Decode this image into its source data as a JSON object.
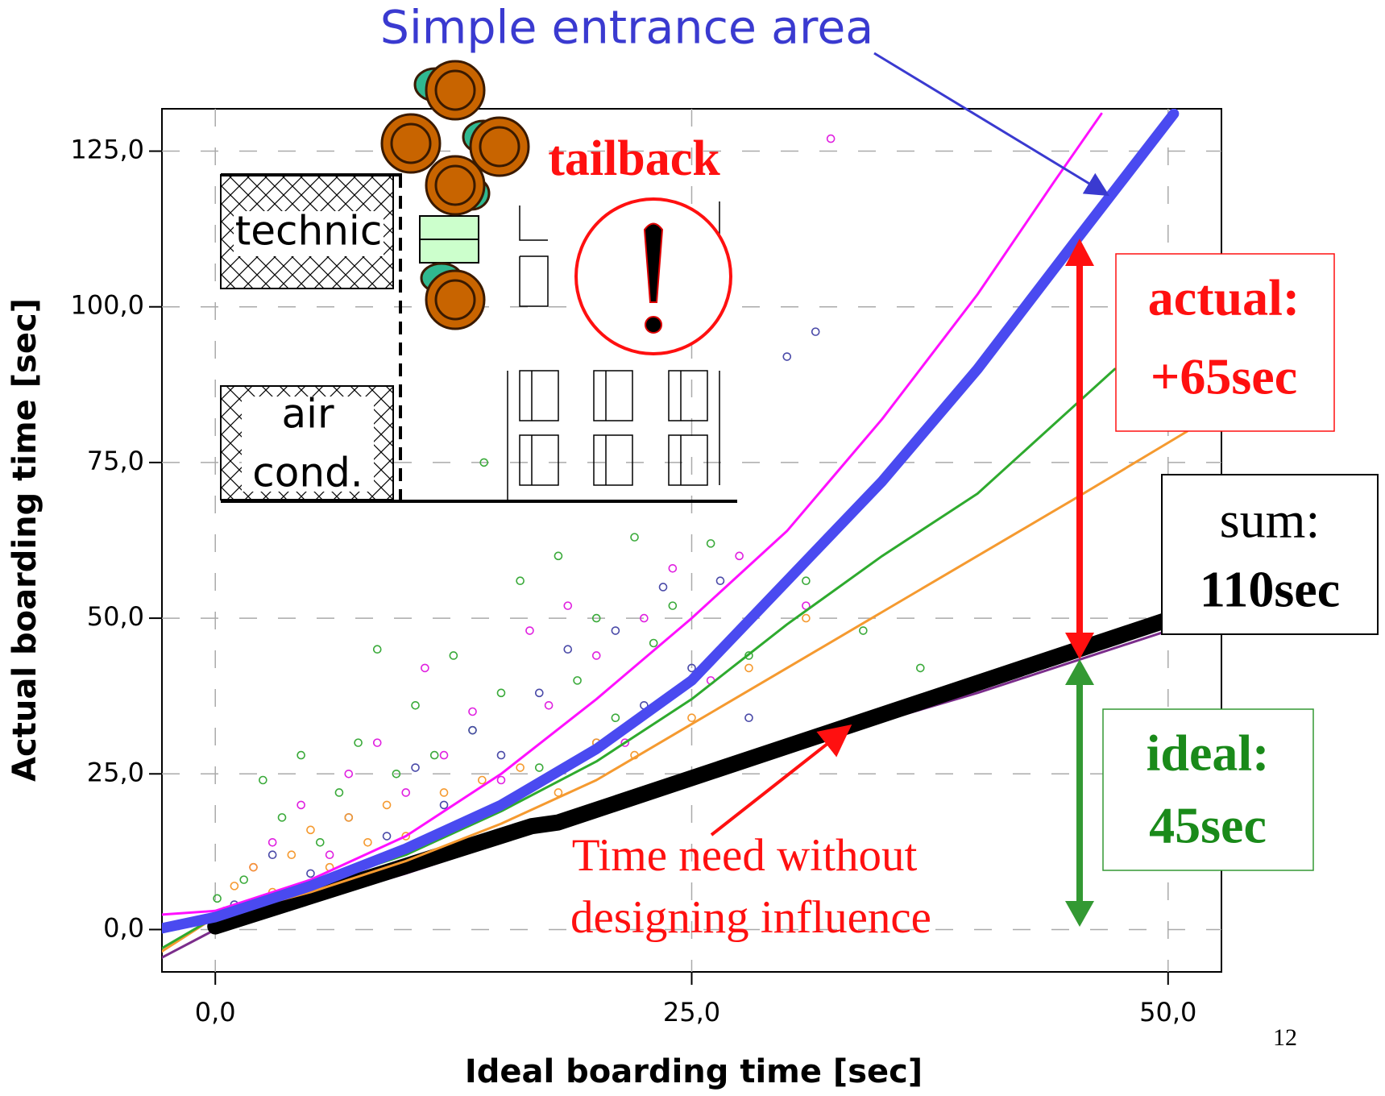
{
  "chart_data": {
    "type": "scatter",
    "x_label": "Ideal boarding time [sec]",
    "y_label": "Actual boarding time [sec]",
    "xlim": [
      -2.8,
      52.8
    ],
    "ylim": [
      -6.8,
      131.8
    ],
    "xticks": [
      {
        "value": 0,
        "label": "0,0"
      },
      {
        "value": 25,
        "label": "25,0"
      },
      {
        "value": 50,
        "label": "50,0"
      }
    ],
    "yticks": [
      {
        "value": 0,
        "label": "0,0"
      },
      {
        "value": 25,
        "label": "25,0"
      },
      {
        "value": 50,
        "label": "50,0"
      },
      {
        "value": 75,
        "label": "75,0"
      },
      {
        "value": 100,
        "label": "100,0"
      },
      {
        "value": 125,
        "label": "125,0"
      }
    ],
    "grid": true,
    "series": [
      {
        "style": "markers",
        "color": "#3aaa3a",
        "x": [
          0.1,
          1.5,
          2.5,
          3.5,
          4.5,
          5.5,
          6.5,
          7.5,
          8.5,
          9.5,
          10.5,
          11.5,
          12.5,
          13.5,
          14.1,
          15,
          16,
          17,
          18,
          19,
          20,
          21,
          22,
          23,
          24,
          26,
          28,
          31,
          34,
          37
        ],
        "values": [
          5,
          8,
          24,
          18,
          28,
          14,
          22,
          30,
          45,
          25,
          36,
          28,
          44,
          32,
          75,
          38,
          56,
          26,
          60,
          40,
          50,
          34,
          63,
          46,
          52,
          62,
          44,
          56,
          48,
          42
        ]
      },
      {
        "style": "markers",
        "color": "#e020e0",
        "x": [
          0.5,
          2,
          3,
          4.5,
          6,
          7,
          8.5,
          10,
          11,
          12,
          13.5,
          15,
          16.5,
          17.5,
          18.5,
          20,
          21.5,
          22.5,
          24,
          26,
          27.5,
          31,
          32.3
        ],
        "values": [
          3,
          10,
          14,
          20,
          12,
          25,
          30,
          22,
          42,
          28,
          35,
          24,
          48,
          36,
          52,
          44,
          30,
          50,
          58,
          40,
          60,
          52,
          127
        ]
      },
      {
        "style": "markers",
        "color": "#4a4aa8",
        "x": [
          1,
          3,
          5,
          7,
          9,
          10.5,
          12,
          13.5,
          15,
          17,
          18.5,
          20,
          21,
          22.5,
          23.5,
          25,
          26.5,
          28,
          30,
          31.5
        ],
        "values": [
          4,
          12,
          9,
          18,
          15,
          26,
          20,
          32,
          28,
          38,
          45,
          30,
          48,
          36,
          55,
          42,
          56,
          34,
          92,
          96
        ]
      },
      {
        "style": "markers",
        "color": "#f59a30",
        "x": [
          1,
          2,
          3,
          4,
          5,
          6,
          7,
          8,
          9,
          10,
          12,
          14,
          16,
          18,
          20,
          22,
          25,
          28,
          31
        ],
        "values": [
          7,
          10,
          6,
          12,
          16,
          10,
          18,
          14,
          20,
          15,
          22,
          24,
          26,
          22,
          30,
          28,
          34,
          42,
          50
        ]
      },
      {
        "style": "line",
        "color": "#7b2d8b",
        "line_width": 3,
        "x": [
          -2.8,
          0,
          10,
          20,
          30,
          40,
          45,
          50
        ],
        "values": [
          -4.5,
          0,
          9,
          19,
          29,
          38,
          43,
          48
        ]
      },
      {
        "style": "line",
        "color": "#000000",
        "line_width": 20,
        "x": [
          0,
          16.6,
          18,
          51.5
        ],
        "values": [
          0.5,
          16.6,
          17.2,
          51.3
        ]
      },
      {
        "style": "line",
        "color": "#f59a30",
        "line_width": 3,
        "x": [
          -2.8,
          0,
          5,
          10,
          15,
          20,
          25,
          30,
          35,
          40,
          45,
          51
        ],
        "values": [
          -3.5,
          2,
          6,
          11,
          17,
          24,
          33,
          42,
          51,
          60,
          69,
          80
        ]
      },
      {
        "style": "line",
        "color": "#2eaa2e",
        "line_width": 3,
        "x": [
          -2.8,
          0,
          5,
          10,
          15,
          20,
          25,
          30,
          35,
          40,
          47.2
        ],
        "values": [
          -3,
          2,
          7,
          12,
          19,
          27,
          37,
          49,
          60,
          70,
          90
        ]
      },
      {
        "style": "line",
        "color": "#ff10ff",
        "line_width": 3,
        "x": [
          -2.8,
          0,
          5,
          10,
          15,
          20,
          25,
          30,
          35,
          40,
          44,
          46.5
        ],
        "values": [
          2.4,
          3,
          8,
          15,
          25,
          37,
          50,
          64,
          82,
          102,
          120,
          131
        ]
      },
      {
        "style": "line",
        "color": "#4a4af0",
        "line_width": 13,
        "x": [
          -2.8,
          0,
          5,
          10,
          15,
          20,
          25,
          30,
          35,
          40,
          45,
          50.3
        ],
        "values": [
          0.2,
          2,
          7,
          13,
          20,
          29,
          40,
          56,
          72,
          90,
          110,
          131
        ]
      }
    ],
    "annotations": {
      "entrance": "Simple entrance area",
      "tailback": "tailback",
      "technic": "technic",
      "air": "air",
      "cond": "cond.",
      "actual_label": "actual:",
      "actual_value": "+65sec",
      "sum_label": "sum:",
      "sum_value": "110sec",
      "ideal_label": "ideal:",
      "ideal_value": "45sec",
      "note_line1": "Time need without",
      "note_line2": "designing influence"
    }
  },
  "page_number": "12"
}
